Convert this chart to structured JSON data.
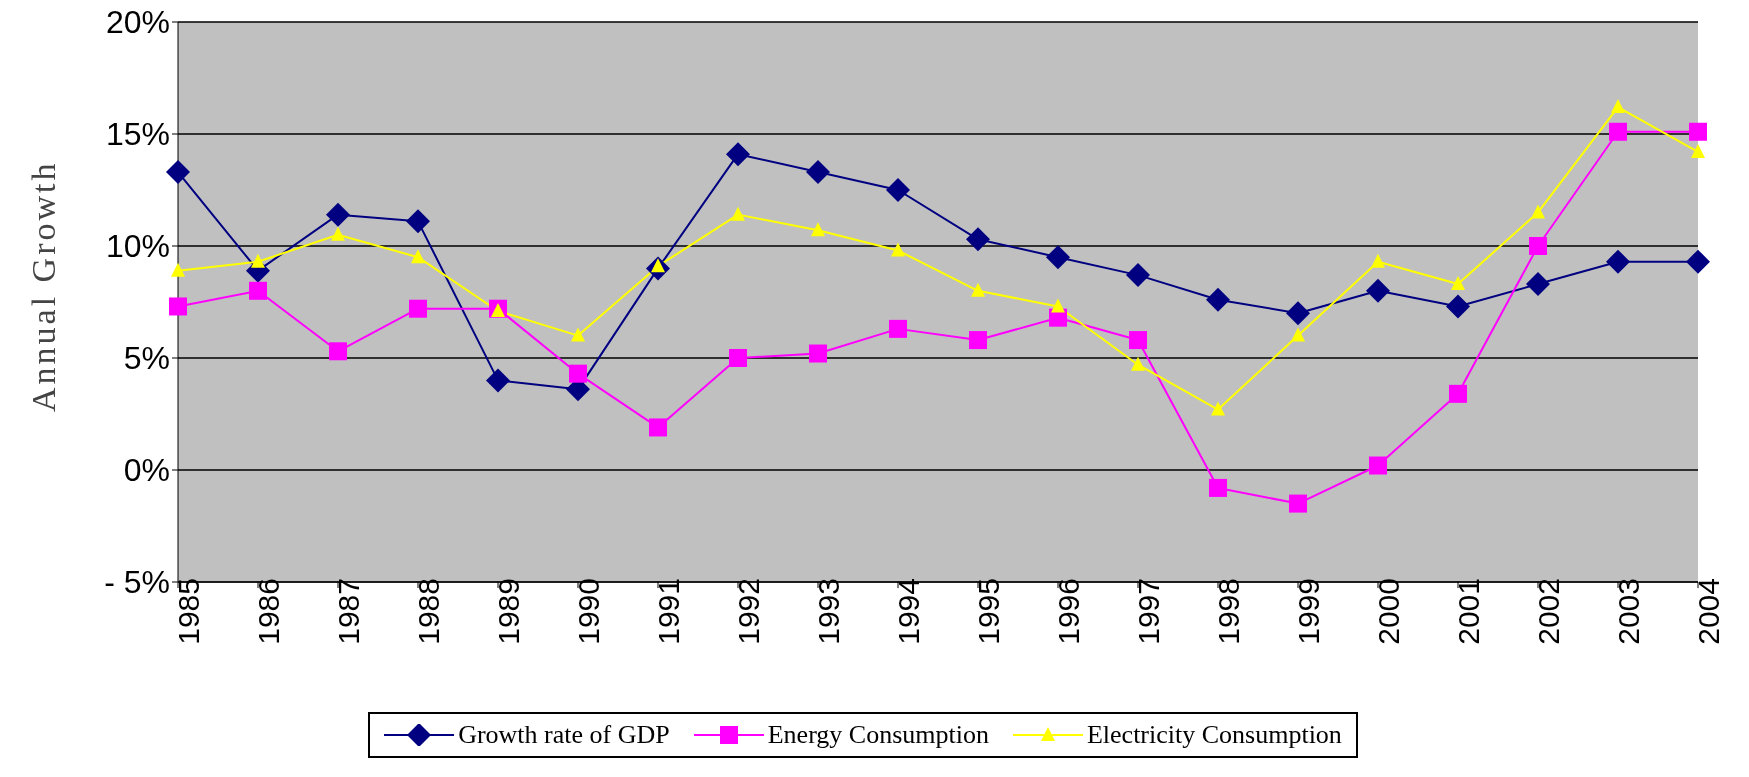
{
  "chart_data": {
    "type": "line",
    "ylabel": "Annual Growth",
    "categories": [
      "1985",
      "1986",
      "1987",
      "1988",
      "1989",
      "1990",
      "1991",
      "1992",
      "1993",
      "1994",
      "1995",
      "1996",
      "1997",
      "1998",
      "1999",
      "2000",
      "2001",
      "2002",
      "2003",
      "2004"
    ],
    "ylim": [
      -5,
      20
    ],
    "yticks": [
      {
        "value": -5,
        "label": "- 5%"
      },
      {
        "value": 0,
        "label": "0%"
      },
      {
        "value": 5,
        "label": "5%"
      },
      {
        "value": 10,
        "label": "10%"
      },
      {
        "value": 15,
        "label": "15%"
      },
      {
        "value": 20,
        "label": "20%"
      }
    ],
    "grid": "y",
    "legend": "bottom",
    "series": [
      {
        "name": "Growth rate of GDP",
        "color": "#000080",
        "marker": "diamond",
        "values": [
          13.3,
          8.9,
          11.4,
          11.1,
          4.0,
          3.6,
          9.0,
          14.1,
          13.3,
          12.5,
          10.3,
          9.5,
          8.7,
          7.6,
          7.0,
          8.0,
          7.3,
          8.3,
          9.3,
          9.3
        ]
      },
      {
        "name": "Energy Consumption",
        "color": "#ff00ff",
        "marker": "square",
        "values": [
          7.3,
          8.0,
          5.3,
          7.2,
          7.2,
          4.3,
          1.9,
          5.0,
          5.2,
          6.3,
          5.8,
          6.8,
          5.8,
          -0.8,
          -1.5,
          0.2,
          3.4,
          10.0,
          15.1,
          15.1
        ]
      },
      {
        "name": "Electricity Consumption",
        "color": "#ffff00",
        "marker": "triangle",
        "values": [
          8.9,
          9.3,
          10.5,
          9.5,
          7.1,
          6.0,
          9.1,
          11.4,
          10.7,
          9.8,
          8.0,
          7.3,
          4.7,
          2.7,
          6.0,
          9.3,
          8.3,
          11.5,
          16.2,
          14.2
        ]
      }
    ]
  }
}
